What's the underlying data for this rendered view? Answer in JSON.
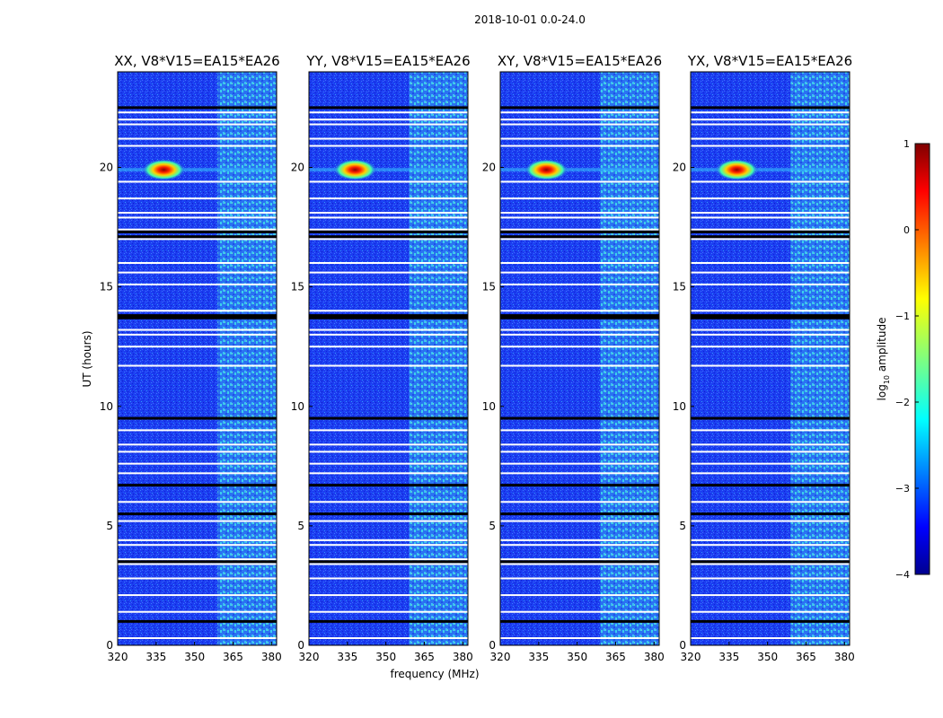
{
  "figure": {
    "suptitle": "2018-10-01 0.0-24.0",
    "xlabel": "frequency (MHz)",
    "ylabel": "UT (hours)"
  },
  "chart_data": {
    "type": "heatmap",
    "x_range_mhz": [
      320,
      382
    ],
    "y_range_hours": [
      0,
      24
    ],
    "x_ticks": [
      "320",
      "335",
      "350",
      "365",
      "380"
    ],
    "x_tick_values": [
      320,
      335,
      350,
      365,
      380
    ],
    "y_ticks": [
      "0",
      "5",
      "10",
      "15",
      "20"
    ],
    "y_tick_values": [
      0,
      5,
      10,
      15,
      20
    ],
    "panels": [
      {
        "title": "XX, V8*V15=EA15*EA26"
      },
      {
        "title": "YY, V8*V15=EA15*EA26"
      },
      {
        "title": "XY, V8*V15=EA15*EA26"
      },
      {
        "title": "YX, V8*V15=EA15*EA26"
      }
    ],
    "rfi_band_mhz": [
      359,
      382
    ],
    "bright_source": {
      "freq_mhz": 338,
      "ut_hours": 19.9
    },
    "flagged_white_ut": [
      0.3,
      1.4,
      2.1,
      2.8,
      3.4,
      3.6,
      4.2,
      4.4,
      5.2,
      6.0,
      7.2,
      7.6,
      8.1,
      8.4,
      9.0,
      11.7,
      12.5,
      13.0,
      13.2,
      14.0,
      15.1,
      15.6,
      16.0,
      17.0,
      17.4,
      17.9,
      18.1,
      18.7,
      19.4,
      20.9,
      21.2,
      21.8,
      22.0,
      22.3
    ],
    "flagged_black_ut": [
      1.0,
      3.5,
      5.5,
      6.7,
      9.5,
      13.7,
      13.8,
      17.1,
      17.3,
      22.5
    ],
    "colorbar": {
      "label": "log10 amplitude",
      "label_main": "log",
      "label_sub": "10",
      "label_rest": " amplitude",
      "range": [
        -4,
        1
      ],
      "ticks": [
        "−4",
        "−3",
        "−2",
        "−1",
        "0",
        "1"
      ],
      "tick_values": [
        -4,
        -3,
        -2,
        -1,
        0,
        1
      ]
    }
  }
}
